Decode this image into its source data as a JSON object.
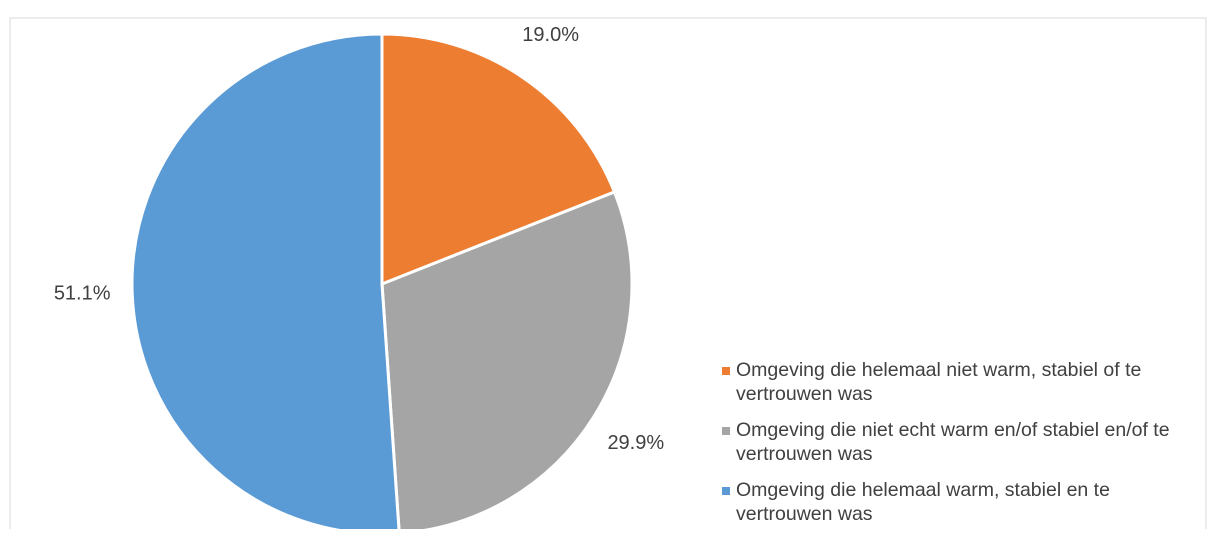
{
  "chart_data": {
    "type": "pie",
    "categories": [
      "Omgeving die helemaal niet warm, stabiel of te vertrouwen was",
      "Omgeving die niet echt warm en/of stabiel en/of te vertrouwen was",
      "Omgeving die helemaal warm, stabiel en te vertrouwen was"
    ],
    "values": [
      19.0,
      29.9,
      51.1
    ],
    "value_labels": [
      "19.0%",
      "29.9%",
      "51.1%"
    ],
    "colors": [
      "#ed7d31",
      "#a5a5a5",
      "#5b9bd5"
    ],
    "legend": "right"
  }
}
